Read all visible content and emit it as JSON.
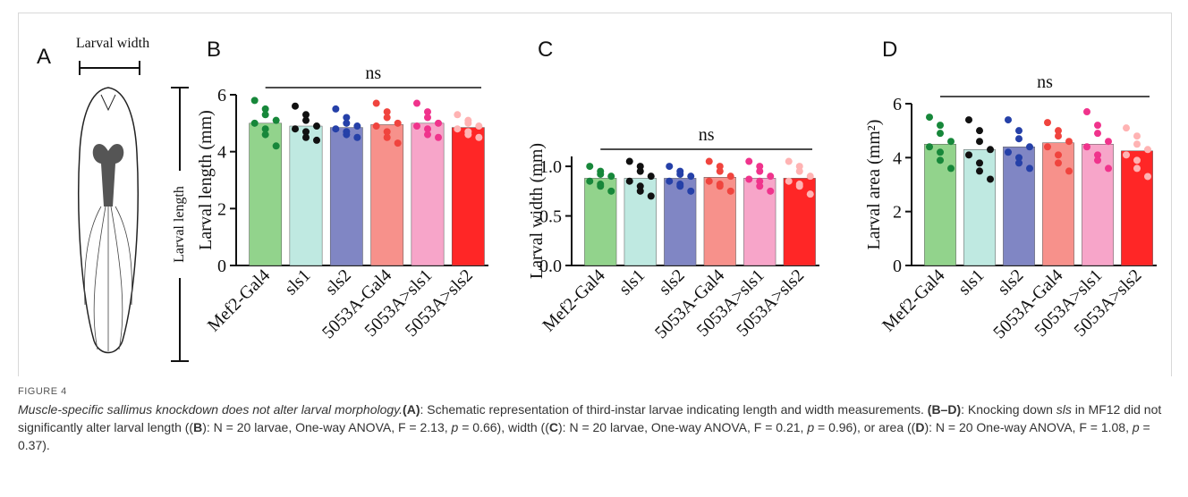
{
  "panel_a": {
    "letter": "A",
    "width_label": "Larval width",
    "length_label": "Larval length"
  },
  "chart_data": [
    {
      "type": "bar",
      "panel": "B",
      "y_label": "Larval length (mm)",
      "annotation": "ns",
      "categories": [
        "Mef2-Gal4",
        "sls1",
        "sls2",
        "5053A-Gal4",
        "5053A>sls1",
        "5053A>sls2"
      ],
      "values": [
        5.0,
        4.9,
        4.85,
        4.95,
        5.0,
        4.85
      ],
      "bar_colors": [
        "#92d38c",
        "#bfe9e1",
        "#8086c4",
        "#f7918b",
        "#f7a5c9",
        "#ff2626"
      ],
      "point_colors": [
        "#17873a",
        "#111111",
        "#2540a8",
        "#f0443e",
        "#f0338c",
        "#ffb3b3"
      ],
      "points": [
        [
          5.8,
          5.5,
          5.3,
          5.1,
          5.0,
          4.8,
          4.6,
          4.2
        ],
        [
          5.6,
          5.3,
          5.1,
          4.9,
          4.8,
          4.7,
          4.5,
          4.4
        ],
        [
          5.5,
          5.2,
          5.0,
          4.9,
          4.8,
          4.7,
          4.6,
          4.5
        ],
        [
          5.7,
          5.4,
          5.2,
          5.0,
          4.9,
          4.7,
          4.5,
          4.3
        ],
        [
          5.7,
          5.4,
          5.2,
          5.0,
          4.9,
          4.8,
          4.6,
          4.5
        ],
        [
          5.3,
          5.1,
          5.0,
          4.9,
          4.8,
          4.7,
          4.6,
          4.5
        ]
      ],
      "ylim": [
        0,
        6
      ],
      "yticks": [
        0,
        2,
        4,
        6
      ]
    },
    {
      "type": "bar",
      "panel": "C",
      "y_label": "Larval width (mm)",
      "annotation": "ns",
      "categories": [
        "Mef2-Gal4",
        "sls1",
        "sls2",
        "5053A-Gal4",
        "5053A>sls1",
        "5053A>sls2"
      ],
      "values": [
        0.88,
        0.88,
        0.88,
        0.89,
        0.88,
        0.88
      ],
      "bar_colors": [
        "#92d38c",
        "#bfe9e1",
        "#8086c4",
        "#f7918b",
        "#f7a5c9",
        "#ff2626"
      ],
      "point_colors": [
        "#17873a",
        "#111111",
        "#2540a8",
        "#f0443e",
        "#f0338c",
        "#ffb3b3"
      ],
      "points": [
        [
          1.0,
          0.95,
          0.92,
          0.9,
          0.85,
          0.82,
          0.8,
          0.75
        ],
        [
          1.05,
          1.0,
          0.95,
          0.9,
          0.85,
          0.8,
          0.75,
          0.7
        ],
        [
          1.0,
          0.95,
          0.92,
          0.9,
          0.85,
          0.82,
          0.8,
          0.75
        ],
        [
          1.05,
          1.0,
          0.95,
          0.9,
          0.85,
          0.82,
          0.8,
          0.75
        ],
        [
          1.05,
          1.0,
          0.95,
          0.9,
          0.87,
          0.85,
          0.8,
          0.75
        ],
        [
          1.05,
          1.0,
          0.95,
          0.9,
          0.85,
          0.82,
          0.8,
          0.72
        ]
      ],
      "ylim": [
        0,
        1.1
      ],
      "yticks": [
        {
          "value": 0,
          "label": "0.0"
        },
        {
          "value": 0.5,
          "label": "0.5"
        },
        {
          "value": 1,
          "label": "1.0"
        }
      ]
    },
    {
      "type": "bar",
      "panel": "D",
      "y_label": "Larval area (mm²)",
      "annotation": "ns",
      "categories": [
        "Mef2-Gal4",
        "sls1",
        "sls2",
        "5053A-Gal4",
        "5053A>sls1",
        "5053A>sls2"
      ],
      "values": [
        4.5,
        4.3,
        4.4,
        4.55,
        4.5,
        4.25
      ],
      "bar_colors": [
        "#92d38c",
        "#bfe9e1",
        "#8086c4",
        "#f7918b",
        "#f7a5c9",
        "#ff2626"
      ],
      "point_colors": [
        "#17873a",
        "#111111",
        "#2540a8",
        "#f0443e",
        "#f0338c",
        "#ffb3b3"
      ],
      "points": [
        [
          5.5,
          5.2,
          4.9,
          4.6,
          4.4,
          4.2,
          3.9,
          3.6
        ],
        [
          5.4,
          5.0,
          4.6,
          4.3,
          4.1,
          3.8,
          3.5,
          3.2
        ],
        [
          5.4,
          5.0,
          4.7,
          4.4,
          4.2,
          4.0,
          3.8,
          3.6
        ],
        [
          5.3,
          5.0,
          4.8,
          4.6,
          4.4,
          4.1,
          3.8,
          3.5
        ],
        [
          5.7,
          5.2,
          4.9,
          4.6,
          4.4,
          4.1,
          3.9,
          3.6
        ],
        [
          5.1,
          4.8,
          4.5,
          4.3,
          4.1,
          3.9,
          3.6,
          3.3
        ]
      ],
      "ylim": [
        0,
        6
      ],
      "yticks": [
        0,
        2,
        4,
        6
      ]
    }
  ],
  "caption": {
    "label": "FIGURE 4",
    "parts": [
      "Muscle-specific sallimus knockdown does not alter larval morphology.",
      "(A)",
      ": Schematic representation of third-instar larvae indicating length and width measurements. ",
      "(B–D)",
      ": Knocking down ",
      "sls",
      " in MF12 did not significantly alter larval length ((",
      "B",
      "): N = 20 larvae, One-way ANOVA, F = 2.13, ",
      "p",
      " = 0.66), width ((",
      "C",
      "): N = 20 larvae, One-way ANOVA, F = 0.21, ",
      "p",
      " = 0.96), or area ((",
      "D",
      "): N = 20 One-way ANOVA, F = 1.08, ",
      "p",
      " = 0.37)."
    ]
  }
}
